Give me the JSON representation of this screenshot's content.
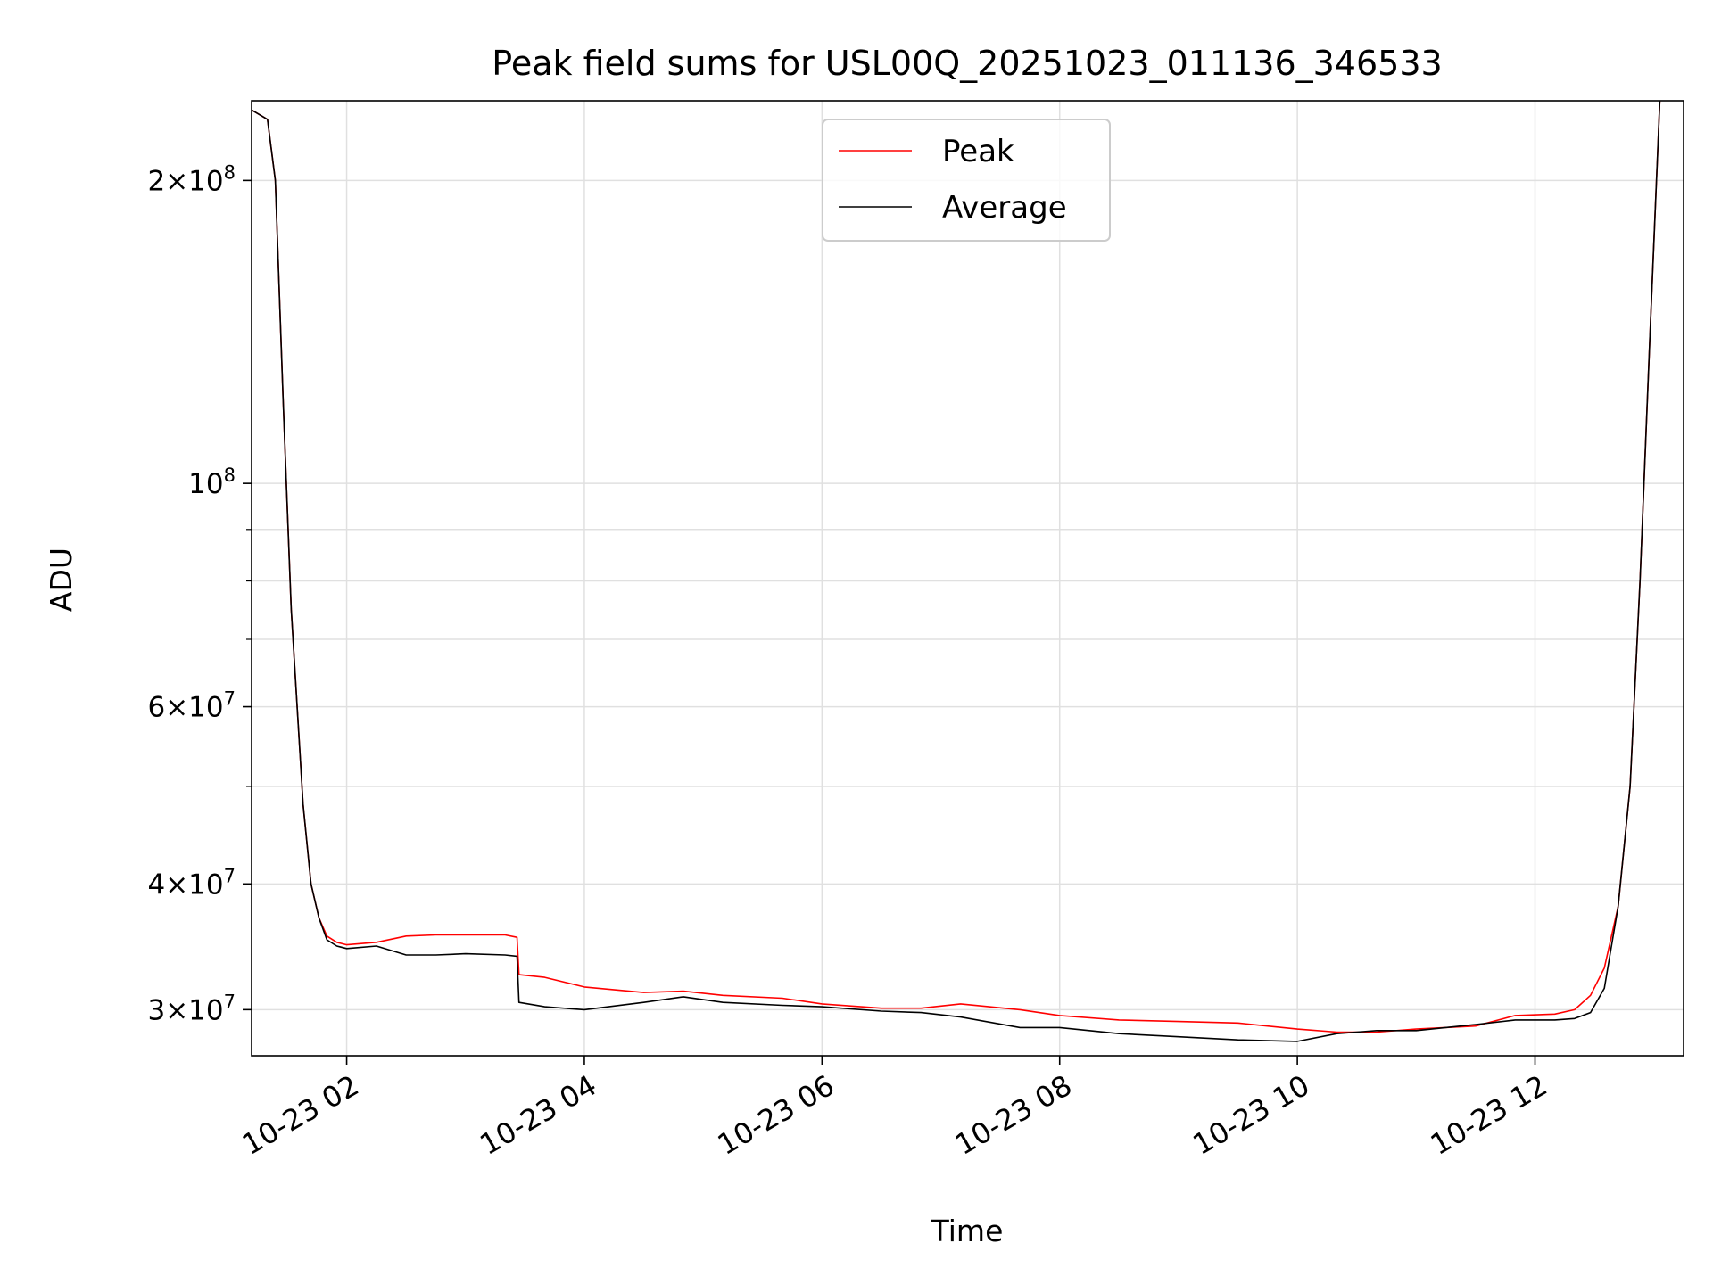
{
  "chart_data": {
    "type": "line",
    "title": "Peak field sums for USL00Q_20251023_011136_346533",
    "xlabel": "Time",
    "ylabel": "ADU",
    "yscale": "log",
    "ylim": [
      27000000,
      240000000
    ],
    "xlim": [
      "2025-10-23 01:12",
      "2025-10-23 13:15"
    ],
    "x_ticks": [
      {
        "t": "2025-10-23 02:00",
        "label": "10-23 02"
      },
      {
        "t": "2025-10-23 04:00",
        "label": "10-23 04"
      },
      {
        "t": "2025-10-23 06:00",
        "label": "10-23 06"
      },
      {
        "t": "2025-10-23 08:00",
        "label": "10-23 08"
      },
      {
        "t": "2025-10-23 10:00",
        "label": "10-23 10"
      },
      {
        "t": "2025-10-23 12:00",
        "label": "10-23 12"
      }
    ],
    "y_ticks": [
      {
        "value": 30000000,
        "base": "3",
        "exp": "7"
      },
      {
        "value": 40000000,
        "base": "4",
        "exp": "7"
      },
      {
        "value": 60000000,
        "base": "6",
        "exp": "7"
      },
      {
        "value": 100000000,
        "base": "",
        "exp": "8"
      },
      {
        "value": 200000000,
        "base": "2",
        "exp": "8"
      }
    ],
    "y_minor_ticks": [
      50000000,
      70000000,
      80000000,
      90000000
    ],
    "grid": true,
    "legend_position": "top-center",
    "series": [
      {
        "name": "Peak",
        "color": "#ff0000",
        "x": [
          "2025-10-23 01:12",
          "2025-10-23 01:20",
          "2025-10-23 01:24",
          "2025-10-23 01:28",
          "2025-10-23 01:32",
          "2025-10-23 01:38",
          "2025-10-23 01:42",
          "2025-10-23 01:46",
          "2025-10-23 01:50",
          "2025-10-23 01:55",
          "2025-10-23 02:00",
          "2025-10-23 02:15",
          "2025-10-23 02:30",
          "2025-10-23 02:45",
          "2025-10-23 03:00",
          "2025-10-23 03:20",
          "2025-10-23 03:26",
          "2025-10-23 03:27",
          "2025-10-23 03:40",
          "2025-10-23 04:00",
          "2025-10-23 04:30",
          "2025-10-23 04:50",
          "2025-10-23 05:10",
          "2025-10-23 05:40",
          "2025-10-23 06:00",
          "2025-10-23 06:30",
          "2025-10-23 06:50",
          "2025-10-23 07:10",
          "2025-10-23 07:40",
          "2025-10-23 08:00",
          "2025-10-23 08:30",
          "2025-10-23 09:00",
          "2025-10-23 09:30",
          "2025-10-23 10:00",
          "2025-10-23 10:20",
          "2025-10-23 10:40",
          "2025-10-23 11:00",
          "2025-10-23 11:30",
          "2025-10-23 11:50",
          "2025-10-23 12:10",
          "2025-10-23 12:20",
          "2025-10-23 12:28",
          "2025-10-23 12:35",
          "2025-10-23 12:42",
          "2025-10-23 12:48",
          "2025-10-23 12:53",
          "2025-10-23 12:58",
          "2025-10-23 13:03"
        ],
        "y": [
          235000000,
          230000000,
          200000000,
          120000000,
          75000000,
          48000000,
          40000000,
          37000000,
          35500000,
          35000000,
          34800000,
          35000000,
          35500000,
          35600000,
          35600000,
          35600000,
          35400000,
          32500000,
          32300000,
          31600000,
          31200000,
          31300000,
          31000000,
          30800000,
          30400000,
          30100000,
          30100000,
          30400000,
          30000000,
          29600000,
          29300000,
          29200000,
          29100000,
          28700000,
          28500000,
          28500000,
          28700000,
          28900000,
          29600000,
          29700000,
          30000000,
          31000000,
          33000000,
          38000000,
          50000000,
          80000000,
          140000000,
          240000000
        ]
      },
      {
        "name": "Average",
        "color": "#000000",
        "x": [
          "2025-10-23 01:12",
          "2025-10-23 01:20",
          "2025-10-23 01:24",
          "2025-10-23 01:28",
          "2025-10-23 01:32",
          "2025-10-23 01:38",
          "2025-10-23 01:42",
          "2025-10-23 01:46",
          "2025-10-23 01:50",
          "2025-10-23 01:55",
          "2025-10-23 02:00",
          "2025-10-23 02:15",
          "2025-10-23 02:30",
          "2025-10-23 02:45",
          "2025-10-23 03:00",
          "2025-10-23 03:20",
          "2025-10-23 03:26",
          "2025-10-23 03:27",
          "2025-10-23 03:40",
          "2025-10-23 04:00",
          "2025-10-23 04:30",
          "2025-10-23 04:50",
          "2025-10-23 05:10",
          "2025-10-23 05:40",
          "2025-10-23 06:00",
          "2025-10-23 06:30",
          "2025-10-23 06:50",
          "2025-10-23 07:10",
          "2025-10-23 07:40",
          "2025-10-23 08:00",
          "2025-10-23 08:30",
          "2025-10-23 09:00",
          "2025-10-23 09:30",
          "2025-10-23 10:00",
          "2025-10-23 10:20",
          "2025-10-23 10:40",
          "2025-10-23 11:00",
          "2025-10-23 11:30",
          "2025-10-23 11:50",
          "2025-10-23 12:10",
          "2025-10-23 12:20",
          "2025-10-23 12:28",
          "2025-10-23 12:35",
          "2025-10-23 12:42",
          "2025-10-23 12:48",
          "2025-10-23 12:53",
          "2025-10-23 12:58",
          "2025-10-23 13:03"
        ],
        "y": [
          235000000,
          230000000,
          200000000,
          120000000,
          75000000,
          48000000,
          40000000,
          37000000,
          35200000,
          34700000,
          34500000,
          34700000,
          34000000,
          34000000,
          34100000,
          34000000,
          33900000,
          30500000,
          30200000,
          30000000,
          30500000,
          30900000,
          30500000,
          30300000,
          30200000,
          29900000,
          29800000,
          29500000,
          28800000,
          28800000,
          28400000,
          28200000,
          28000000,
          27900000,
          28400000,
          28600000,
          28600000,
          29000000,
          29300000,
          29300000,
          29400000,
          29800000,
          31500000,
          38000000,
          50000000,
          80000000,
          140000000,
          240000000
        ]
      }
    ]
  }
}
